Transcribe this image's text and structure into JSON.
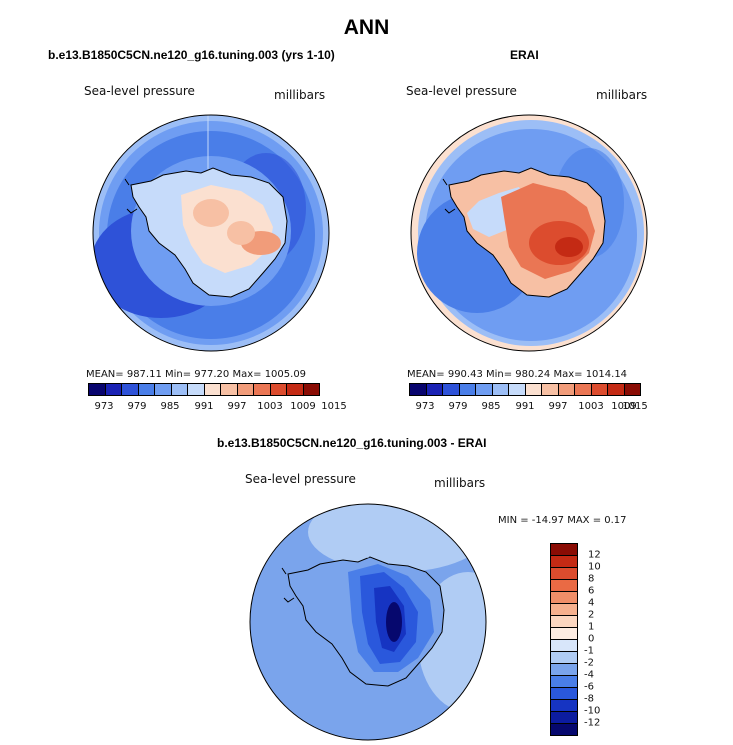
{
  "figure": {
    "title": "ANN"
  },
  "panels": [
    {
      "title": "b.e13.B1850C5CN.ne120_g16.tuning.003 (yrs 1-10)",
      "variable": "Sea-level pressure",
      "units": "millibars",
      "stats": "MEAN=  987.11    Min=  977.20    Max=  1005.09",
      "colorbar_ticks": [
        "973",
        "979",
        "985",
        "991",
        "997",
        "1003",
        "1009",
        "1015"
      ]
    },
    {
      "title": "ERAI",
      "variable": "Sea-level pressure",
      "units": "millibars",
      "stats": "MEAN=  990.43    Min=  980.24    Max=  1014.14",
      "colorbar_ticks": [
        "973",
        "979",
        "985",
        "991",
        "997",
        "1003",
        "1009",
        "1015"
      ]
    },
    {
      "title": "b.e13.B1850C5CN.ne120_g16.tuning.003 - ERAI",
      "variable": "Sea-level pressure",
      "units": "millibars",
      "stats": "MIN = -14.97  MAX =   0.17",
      "colorbar_ticks": [
        "12",
        "10",
        "8",
        "6",
        "4",
        "2",
        "1",
        "0",
        "-1",
        "-2",
        "-4",
        "-6",
        "-8",
        "-10",
        "-12"
      ]
    }
  ],
  "colors": {
    "abs_scale": [
      "#08046e",
      "#1a22b4",
      "#2e52d8",
      "#4a7ee8",
      "#6f9df2",
      "#9cbef6",
      "#c6dbfa",
      "#fbe0d0",
      "#f7c0a4",
      "#f19c7a",
      "#ea7654",
      "#dc4c2e",
      "#c42a14",
      "#8a0c04"
    ],
    "diff_scale": [
      "#8a0c04",
      "#c42a14",
      "#dc4c2e",
      "#ea6a44",
      "#f08e68",
      "#f6b08e",
      "#fbd6c0",
      "#fdece2",
      "#d8e6fa",
      "#b0ccf4",
      "#7aa4ec",
      "#4a7ee8",
      "#2a58dc",
      "#1634c2",
      "#0c1ca0",
      "#06086e"
    ]
  }
}
